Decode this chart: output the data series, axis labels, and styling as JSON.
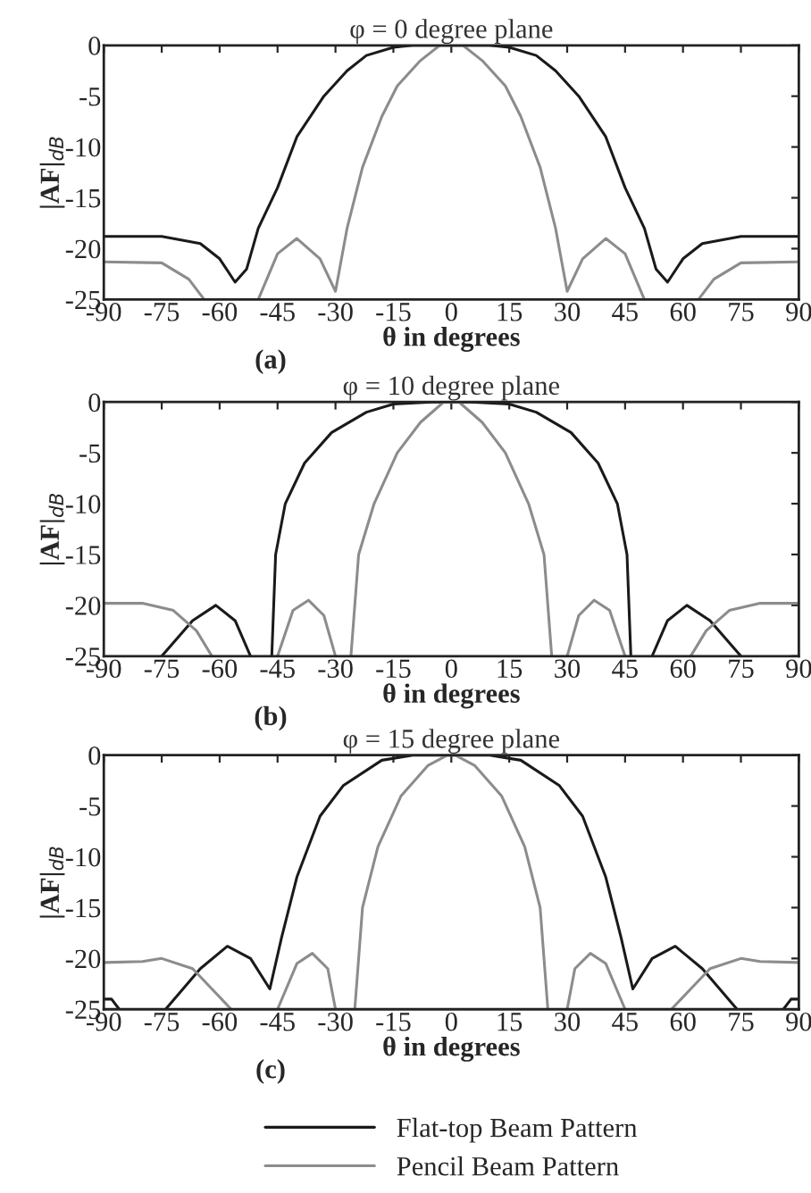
{
  "chart_data": [
    {
      "type": "line",
      "title": "φ = 0 degree plane",
      "xlabel": "θ in degrees",
      "ylabel": "|AF|$_{dB}$",
      "annotations": [
        "(a)"
      ],
      "xlim": [
        -90,
        90
      ],
      "ylim": [
        -25,
        0
      ],
      "xticks": [
        -90,
        -75,
        -60,
        -45,
        -30,
        -15,
        0,
        15,
        30,
        45,
        60,
        75,
        90
      ],
      "yticks": [
        -25,
        -20,
        -15,
        -10,
        -5,
        0
      ],
      "grid": false,
      "legend": false,
      "series": [
        {
          "color": "#1a1a1a",
          "x": [
            -90,
            -75,
            -65,
            -60,
            -56,
            -53,
            -50,
            -45,
            -40,
            -33,
            -27,
            -22,
            -15,
            -10,
            0,
            10,
            15,
            22,
            27,
            33,
            40,
            45,
            50,
            53,
            56,
            60,
            65,
            75,
            90
          ],
          "values": [
            -18.8,
            -18.8,
            -19.5,
            -21,
            -23.3,
            -22,
            -18,
            -14,
            -9,
            -5,
            -2.5,
            -1,
            -0.2,
            0,
            0,
            0,
            -0.2,
            -1,
            -2.5,
            -5,
            -9,
            -14,
            -18,
            -22,
            -23.3,
            -21,
            -19.5,
            -18.8,
            -18.8
          ]
        },
        {
          "color": "#8c8c8c",
          "x": [
            -90,
            -75,
            -68,
            -64,
            -57,
            -50,
            -45,
            -40,
            -34,
            -30,
            -27,
            -23,
            -18,
            -14,
            -8,
            -3,
            3,
            8,
            14,
            18,
            23,
            27,
            30,
            34,
            40,
            45,
            50,
            57,
            64,
            68,
            75,
            90
          ],
          "values": [
            -21.3,
            -21.4,
            -23,
            -25,
            null,
            -25,
            -20.5,
            -19,
            -21,
            -24.2,
            -18,
            -12,
            -7,
            -4,
            -1.5,
            0,
            0,
            -1.5,
            -4,
            -7,
            -12,
            -18,
            -24.2,
            -21,
            -19,
            -20.5,
            -25,
            null,
            -25,
            -23,
            -21.4,
            -21.3
          ]
        }
      ]
    },
    {
      "type": "line",
      "title": "φ = 10 degree plane",
      "xlabel": "θ in degrees",
      "ylabel": "|AF|$_{dB}$",
      "annotations": [
        "(b)"
      ],
      "xlim": [
        -90,
        90
      ],
      "ylim": [
        -25,
        0
      ],
      "xticks": [
        -90,
        -75,
        -60,
        -45,
        -30,
        -15,
        0,
        15,
        30,
        45,
        60,
        75,
        90
      ],
      "yticks": [
        -25,
        -20,
        -15,
        -10,
        -5,
        0
      ],
      "grid": false,
      "legend": false,
      "series": [
        {
          "color": "#1a1a1a",
          "x": [
            -75,
            -67,
            -61,
            -56,
            -52,
            -49,
            -46.5,
            -45.5,
            -43,
            -38,
            -31,
            -22,
            -15,
            -5,
            5,
            15,
            22,
            31,
            38,
            43,
            45.5,
            46.5,
            49,
            52,
            56,
            61,
            67,
            75
          ],
          "values": [
            -25,
            -21.5,
            -20,
            -21.5,
            -25,
            null,
            -25,
            -15,
            -10,
            -6,
            -3,
            -1,
            -0.2,
            0,
            0,
            -0.2,
            -1,
            -3,
            -6,
            -10,
            -15,
            -25,
            null,
            -25,
            -21.5,
            -20,
            -21.5,
            -25
          ]
        },
        {
          "color": "#8c8c8c",
          "x": [
            -90,
            -80,
            -72,
            -66,
            -62,
            -54,
            -45,
            -41,
            -37,
            -33,
            -30,
            -28,
            -26,
            -24,
            -20,
            -14,
            -8,
            -2,
            2,
            8,
            14,
            20,
            24,
            26,
            28,
            30,
            33,
            37,
            41,
            45,
            54,
            62,
            66,
            72,
            80,
            90
          ],
          "values": [
            -19.8,
            -19.8,
            -20.5,
            -22.5,
            -25,
            null,
            -25,
            -20.5,
            -19.5,
            -21,
            -25,
            null,
            -25,
            -15,
            -10,
            -5,
            -2,
            0,
            0,
            -2,
            -5,
            -10,
            -15,
            -25,
            null,
            -25,
            -21,
            -19.5,
            -20.5,
            -25,
            null,
            -25,
            -22.5,
            -20.5,
            -19.8,
            -19.8
          ]
        }
      ]
    },
    {
      "type": "line",
      "title": "φ = 15 degree plane",
      "xlabel": "θ in degrees",
      "ylabel": "|AF|$_{dB}$",
      "annotations": [
        "(c)"
      ],
      "xlim": [
        -90,
        90
      ],
      "ylim": [
        -25,
        0
      ],
      "xticks": [
        -90,
        -75,
        -60,
        -45,
        -30,
        -15,
        0,
        15,
        30,
        45,
        60,
        75,
        90
      ],
      "yticks": [
        -25,
        -20,
        -15,
        -10,
        -5,
        0
      ],
      "grid": false,
      "legend": "bottom",
      "series": [
        {
          "name": "Flat-top Beam Pattern",
          "color": "#1a1a1a",
          "x": [
            -90,
            -88,
            -86,
            -80,
            -74,
            -65,
            -58,
            -52,
            -47,
            -44,
            -40,
            -34,
            -28,
            -18,
            -10,
            10,
            18,
            28,
            34,
            40,
            44,
            47,
            52,
            58,
            65,
            74,
            80,
            86,
            88,
            90
          ],
          "values": [
            -24,
            -24,
            -25,
            null,
            -25,
            -21,
            -18.8,
            -20,
            -23,
            -18,
            -12,
            -6,
            -3,
            -0.5,
            0,
            0,
            -0.5,
            -3,
            -6,
            -12,
            -18,
            -23,
            -20,
            -18.8,
            -21,
            -25,
            null,
            -25,
            -24,
            -24
          ]
        },
        {
          "name": "Pencil Beam Pattern",
          "color": "#8c8c8c",
          "x": [
            -90,
            -80,
            -75,
            -67,
            -62,
            -57,
            -50,
            -45,
            -40,
            -36,
            -32,
            -30,
            -27,
            -25,
            -23,
            -19,
            -13,
            -6,
            -1,
            1,
            6,
            13,
            19,
            23,
            25,
            27,
            30,
            32,
            36,
            40,
            45,
            50,
            57,
            62,
            67,
            75,
            80,
            90
          ],
          "values": [
            -20.4,
            -20.3,
            -20,
            -21,
            -23,
            -25,
            null,
            -25,
            -20.5,
            -19.5,
            -21,
            -25,
            null,
            -25,
            -15,
            -9,
            -4,
            -1,
            0,
            0,
            -1,
            -4,
            -9,
            -15,
            -25,
            null,
            -25,
            -21,
            -19.5,
            -20.5,
            -25,
            null,
            -25,
            -23,
            -21,
            -20,
            -20.3,
            -20.4
          ]
        }
      ]
    }
  ]
}
